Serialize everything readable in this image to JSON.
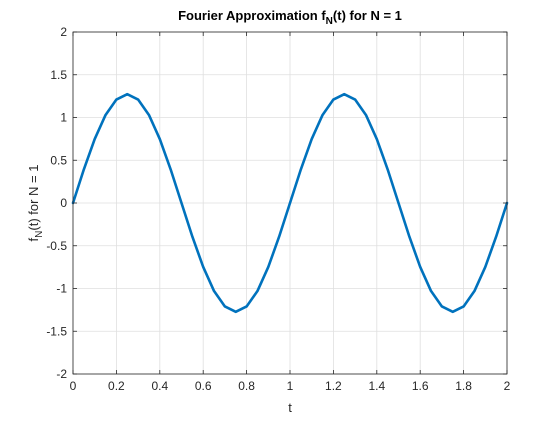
{
  "chart_data": {
    "type": "line",
    "title_parts": {
      "prefix": "Fourier Approximation f",
      "sub": "N",
      "suffix": "(t) for N = 1"
    },
    "xlabel": "t",
    "ylabel_parts": {
      "prefix": "f",
      "sub": "N",
      "suffix": "(t) for N = 1"
    },
    "xlim": [
      0,
      2
    ],
    "ylim": [
      -2,
      2
    ],
    "x_ticks": [
      "0",
      "0.2",
      "0.4",
      "0.6",
      "0.8",
      "1",
      "1.2",
      "1.4",
      "1.6",
      "1.8",
      "2"
    ],
    "y_ticks": [
      "2",
      "1.5",
      "1",
      "0.5",
      "0",
      "-0.5",
      "-1",
      "-1.5",
      "-2"
    ],
    "grid": true,
    "series": [
      {
        "color": "#0072BD",
        "x": [
          0,
          0.05,
          0.1,
          0.15,
          0.2,
          0.25,
          0.3,
          0.35,
          0.4,
          0.45,
          0.5,
          0.55,
          0.6,
          0.65,
          0.7,
          0.75,
          0.8,
          0.85,
          0.9,
          0.95,
          1.0,
          1.05,
          1.1,
          1.15,
          1.2,
          1.25,
          1.3,
          1.35,
          1.4,
          1.45,
          1.5,
          1.55,
          1.6,
          1.65,
          1.7,
          1.75,
          1.8,
          1.85,
          1.9,
          1.95,
          2.0
        ],
        "y": [
          0,
          0.393,
          0.748,
          1.03,
          1.21,
          1.273,
          1.21,
          1.03,
          0.748,
          0.393,
          0,
          -0.393,
          -0.748,
          -1.03,
          -1.21,
          -1.273,
          -1.21,
          -1.03,
          -0.748,
          -0.393,
          0,
          0.393,
          0.748,
          1.03,
          1.21,
          1.273,
          1.21,
          1.03,
          0.748,
          0.393,
          0,
          -0.393,
          -0.748,
          -1.03,
          -1.21,
          -1.273,
          -1.21,
          -1.03,
          -0.748,
          -0.393,
          0
        ]
      }
    ]
  }
}
